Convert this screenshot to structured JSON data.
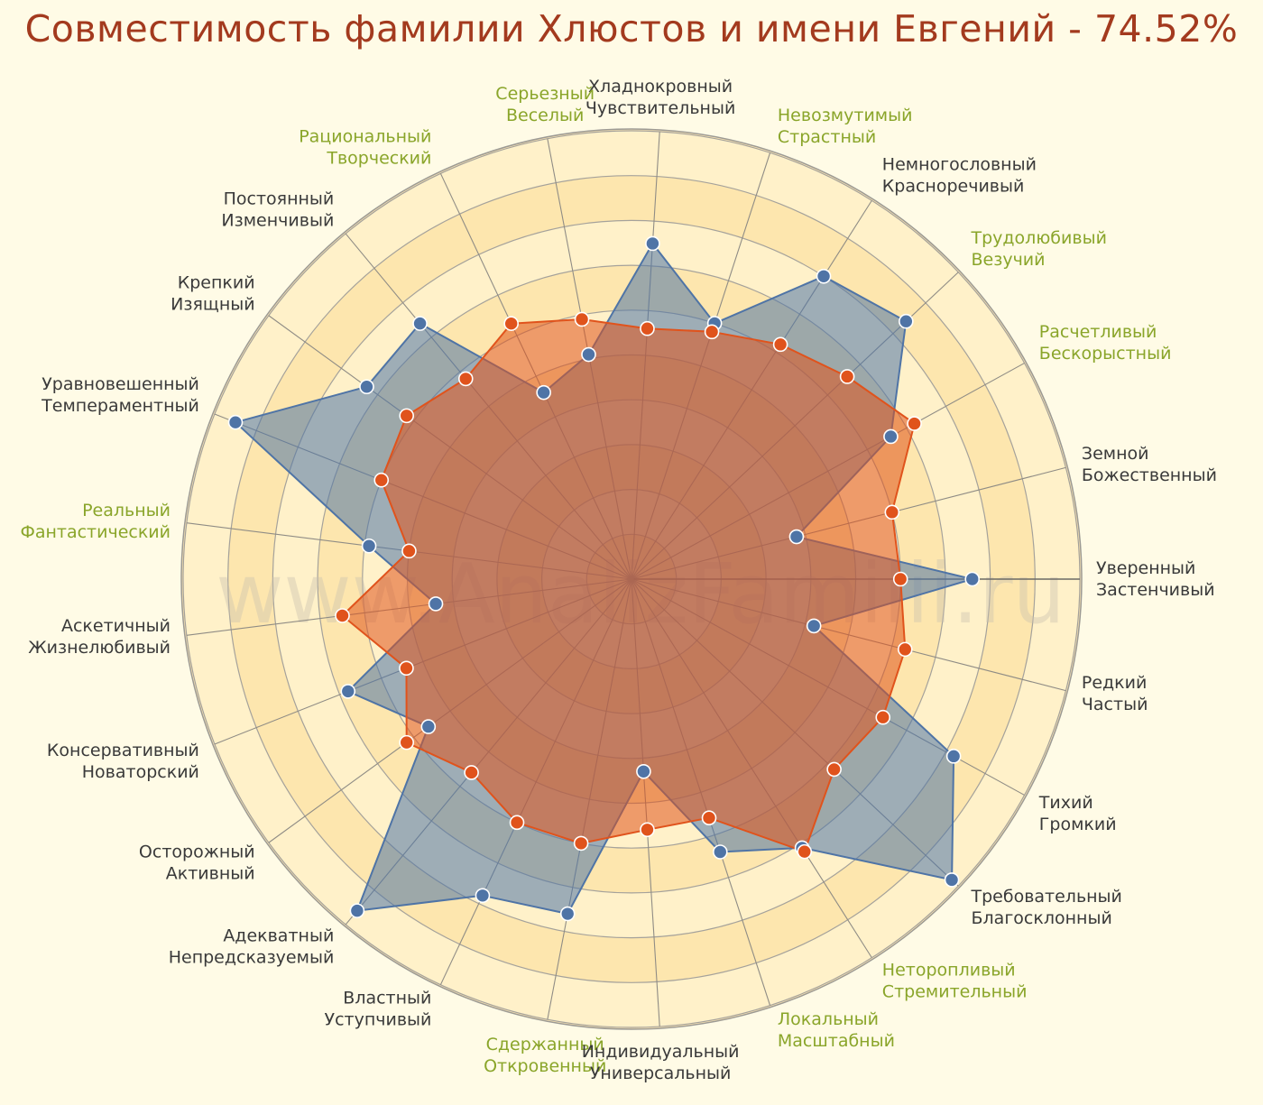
{
  "title": "Совместимость фамилии Хлюстов и имени Евгений - 74.52%",
  "watermark": "www.AnalizFamilii.ru",
  "colors": {
    "series_surname": "#4f74a6",
    "series_name": "#e0531c",
    "label_default": "#3a3a3a",
    "label_highlight": "#8aa52a",
    "title": "#a33a1e"
  },
  "chart_data": {
    "type": "radar",
    "rlim": [
      0,
      10
    ],
    "rings": 10,
    "grid": true,
    "axes": [
      {
        "top": "Уверенный",
        "bottom": "Застенчивый",
        "highlight": false
      },
      {
        "top": "Земной",
        "bottom": "Божественный",
        "highlight": false
      },
      {
        "top": "Расчетливый",
        "bottom": "Бескорыстный",
        "highlight": true
      },
      {
        "top": "Трудолюбивый",
        "bottom": "Везучий",
        "highlight": true
      },
      {
        "top": "Немногословный",
        "bottom": "Красноречивый",
        "highlight": false
      },
      {
        "top": "Невозмутимый",
        "bottom": "Страстный",
        "highlight": true
      },
      {
        "top": "Хладнокровный",
        "bottom": "Чувствительный",
        "highlight": false
      },
      {
        "top": "Серьезный",
        "bottom": "Веселый",
        "highlight": true
      },
      {
        "top": "Рациональный",
        "bottom": "Творческий",
        "highlight": true
      },
      {
        "top": "Постоянный",
        "bottom": "Изменчивый",
        "highlight": false
      },
      {
        "top": "Крепкий",
        "bottom": "Изящный",
        "highlight": false
      },
      {
        "top": "Уравновешенный",
        "bottom": "Темпераментный",
        "highlight": false
      },
      {
        "top": "Реальный",
        "bottom": "Фантастический",
        "highlight": true
      },
      {
        "top": "Аскетичный",
        "bottom": "Жизнелюбивый",
        "highlight": false
      },
      {
        "top": "Консервативный",
        "bottom": "Новаторский",
        "highlight": false
      },
      {
        "top": "Осторожный",
        "bottom": "Активный",
        "highlight": false
      },
      {
        "top": "Адекватный",
        "bottom": "Непредсказуемый",
        "highlight": false
      },
      {
        "top": "Властный",
        "bottom": "Уступчивый",
        "highlight": false
      },
      {
        "top": "Сдержанный",
        "bottom": "Откровенный",
        "highlight": true
      },
      {
        "top": "Индивидуальный",
        "bottom": "Универсальный",
        "highlight": false
      },
      {
        "top": "Локальный",
        "bottom": "Масштабный",
        "highlight": true
      },
      {
        "top": "Неторопливый",
        "bottom": "Стремительный",
        "highlight": true
      },
      {
        "top": "Требовательный",
        "bottom": "Благосклонный",
        "highlight": false
      },
      {
        "top": "Тихий",
        "bottom": "Громкий",
        "highlight": false
      },
      {
        "top": "Редкий",
        "bottom": "Частый",
        "highlight": false
      }
    ],
    "series": [
      {
        "values": [
          7.6,
          3.8,
          6.6,
          8.4,
          8.0,
          6.0,
          7.5,
          5.1,
          4.6,
          7.4,
          7.3,
          9.5,
          5.9,
          4.4,
          6.8,
          5.6,
          9.6,
          7.8,
          7.6,
          4.3,
          6.4,
          7.1,
          9.8,
          8.2,
          4.2
        ]
      },
      {
        "values": [
          6.0,
          6.0,
          7.2,
          6.6,
          6.2,
          5.8,
          5.6,
          5.9,
          6.3,
          5.8,
          6.2,
          6.0,
          5.0,
          6.5,
          5.4,
          6.2,
          5.6,
          6.0,
          6.0,
          5.6,
          5.6,
          7.2,
          6.2,
          6.4,
          6.3
        ]
      }
    ]
  }
}
